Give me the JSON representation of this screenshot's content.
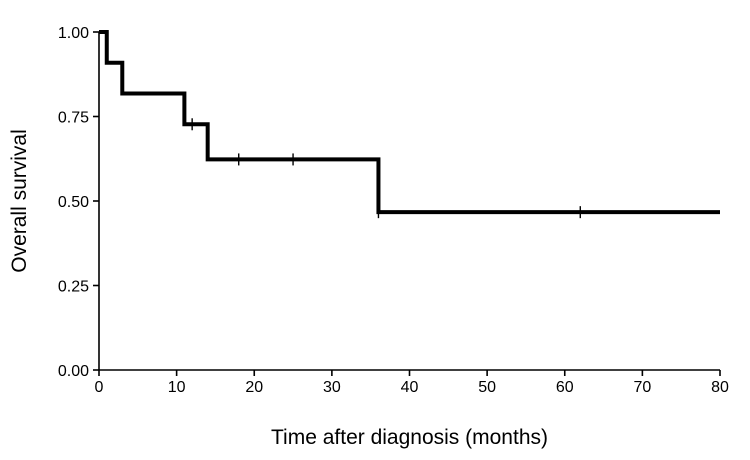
{
  "chart_data": {
    "type": "line",
    "subtype": "kaplan-meier step",
    "title": "",
    "xlabel": "Time after diagnosis (months)",
    "ylabel": "Overall survival",
    "xlim": [
      0,
      80
    ],
    "ylim": [
      0,
      1
    ],
    "x_ticks": [
      "0",
      "10",
      "20",
      "30",
      "40",
      "50",
      "60",
      "70",
      "80"
    ],
    "y_ticks": [
      "0.00",
      "0.25",
      "0.50",
      "0.75",
      "1.00"
    ],
    "grid": false,
    "legend": "none",
    "line_color": "#000000",
    "series": [
      {
        "steps": [
          {
            "x": 0,
            "y": 1.0
          },
          {
            "x": 1,
            "y": 0.909
          },
          {
            "x": 3,
            "y": 0.818
          },
          {
            "x": 11,
            "y": 0.727
          },
          {
            "x": 14,
            "y": 0.623
          },
          {
            "x": 36,
            "y": 0.467
          }
        ],
        "end_x": 80,
        "censored": [
          {
            "x": 12,
            "y": 0.727
          },
          {
            "x": 18,
            "y": 0.623
          },
          {
            "x": 25,
            "y": 0.623
          },
          {
            "x": 36,
            "y": 0.467
          },
          {
            "x": 62,
            "y": 0.467
          }
        ]
      }
    ]
  }
}
